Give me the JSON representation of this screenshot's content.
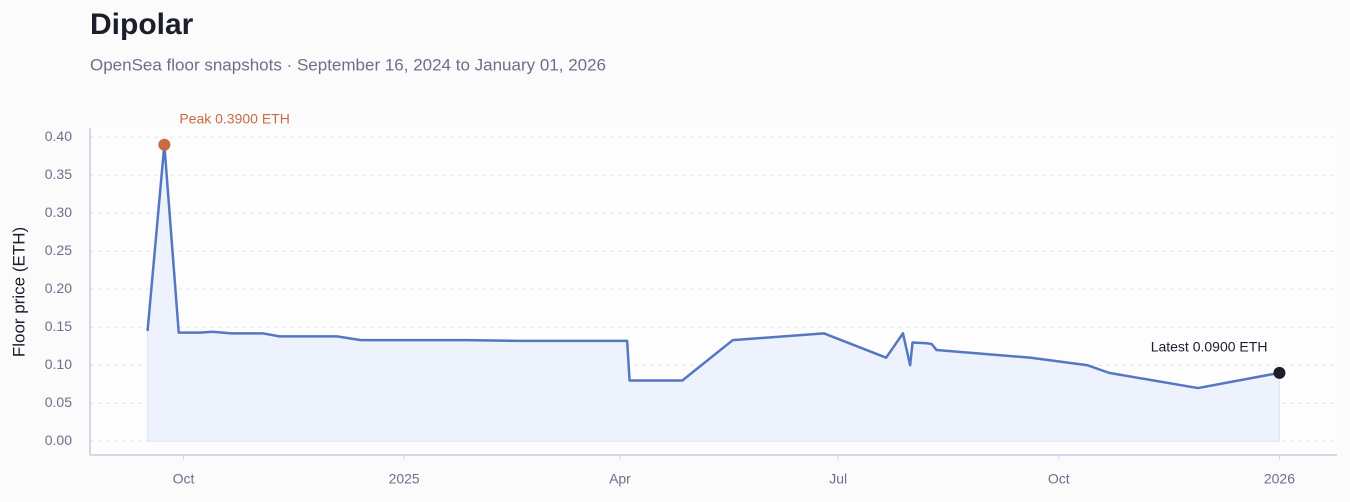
{
  "chart_data": {
    "type": "line",
    "title": "Dipolar",
    "subtitle": "OpenSea floor snapshots · September 16, 2024 to January 01, 2026",
    "y_label": "Floor price (ETH)",
    "x": [
      "2024-09-16",
      "2024-09-23",
      "2024-09-29",
      "2024-10-08",
      "2024-10-13",
      "2024-10-21",
      "2024-11-03",
      "2024-11-10",
      "2024-12-04",
      "2024-12-14",
      "2025-01-27",
      "2025-02-18",
      "2025-04-04",
      "2025-04-05",
      "2025-04-27",
      "2025-05-18",
      "2025-06-25",
      "2025-07-21",
      "2025-07-28",
      "2025-07-31",
      "2025-08-01",
      "2025-08-07",
      "2025-08-09",
      "2025-08-11",
      "2025-09-19",
      "2025-10-13",
      "2025-10-22",
      "2025-11-28",
      "2026-01-01"
    ],
    "series": [
      {
        "name": "Floor price",
        "color": "#5577c2",
        "fill": "#edf2fc",
        "values": [
          0.145,
          0.39,
          0.143,
          0.143,
          0.144,
          0.142,
          0.142,
          0.138,
          0.138,
          0.133,
          0.133,
          0.132,
          0.132,
          0.08,
          0.08,
          0.133,
          0.142,
          0.11,
          0.142,
          0.1,
          0.13,
          0.129,
          0.128,
          0.12,
          0.11,
          0.1,
          0.09,
          0.07,
          0.09
        ]
      }
    ],
    "annotations": [
      {
        "text": "Peak 0.3900 ETH",
        "value": 0.39,
        "color": "#c96a43"
      },
      {
        "text": "Latest 0.0900 ETH",
        "value": 0.09,
        "color": "#1c1f2b"
      }
    ],
    "xlim": [
      "2024-08-23",
      "2026-01-25"
    ],
    "xticks": [
      {
        "value": "2024-10-01",
        "label": "Oct"
      },
      {
        "value": "2025-01-01",
        "label": "2025"
      },
      {
        "value": "2025-04-01",
        "label": "Apr"
      },
      {
        "value": "2025-07-01",
        "label": "Jul"
      },
      {
        "value": "2025-10-01",
        "label": "Oct"
      },
      {
        "value": "2026-01-01",
        "label": "2026"
      }
    ],
    "ylim": [
      -0.018,
      0.412
    ],
    "yticks": [
      {
        "value": 0,
        "label": "0.00"
      },
      {
        "value": 0.05,
        "label": "0.05"
      },
      {
        "value": 0.1,
        "label": "0.10"
      },
      {
        "value": 0.15,
        "label": "0.15"
      },
      {
        "value": 0.2,
        "label": "0.20"
      },
      {
        "value": 0.25,
        "label": "0.25"
      },
      {
        "value": 0.3,
        "label": "0.30"
      },
      {
        "value": 0.35,
        "label": "0.35"
      },
      {
        "value": 0.4,
        "label": "0.40"
      }
    ],
    "grid": true
  }
}
